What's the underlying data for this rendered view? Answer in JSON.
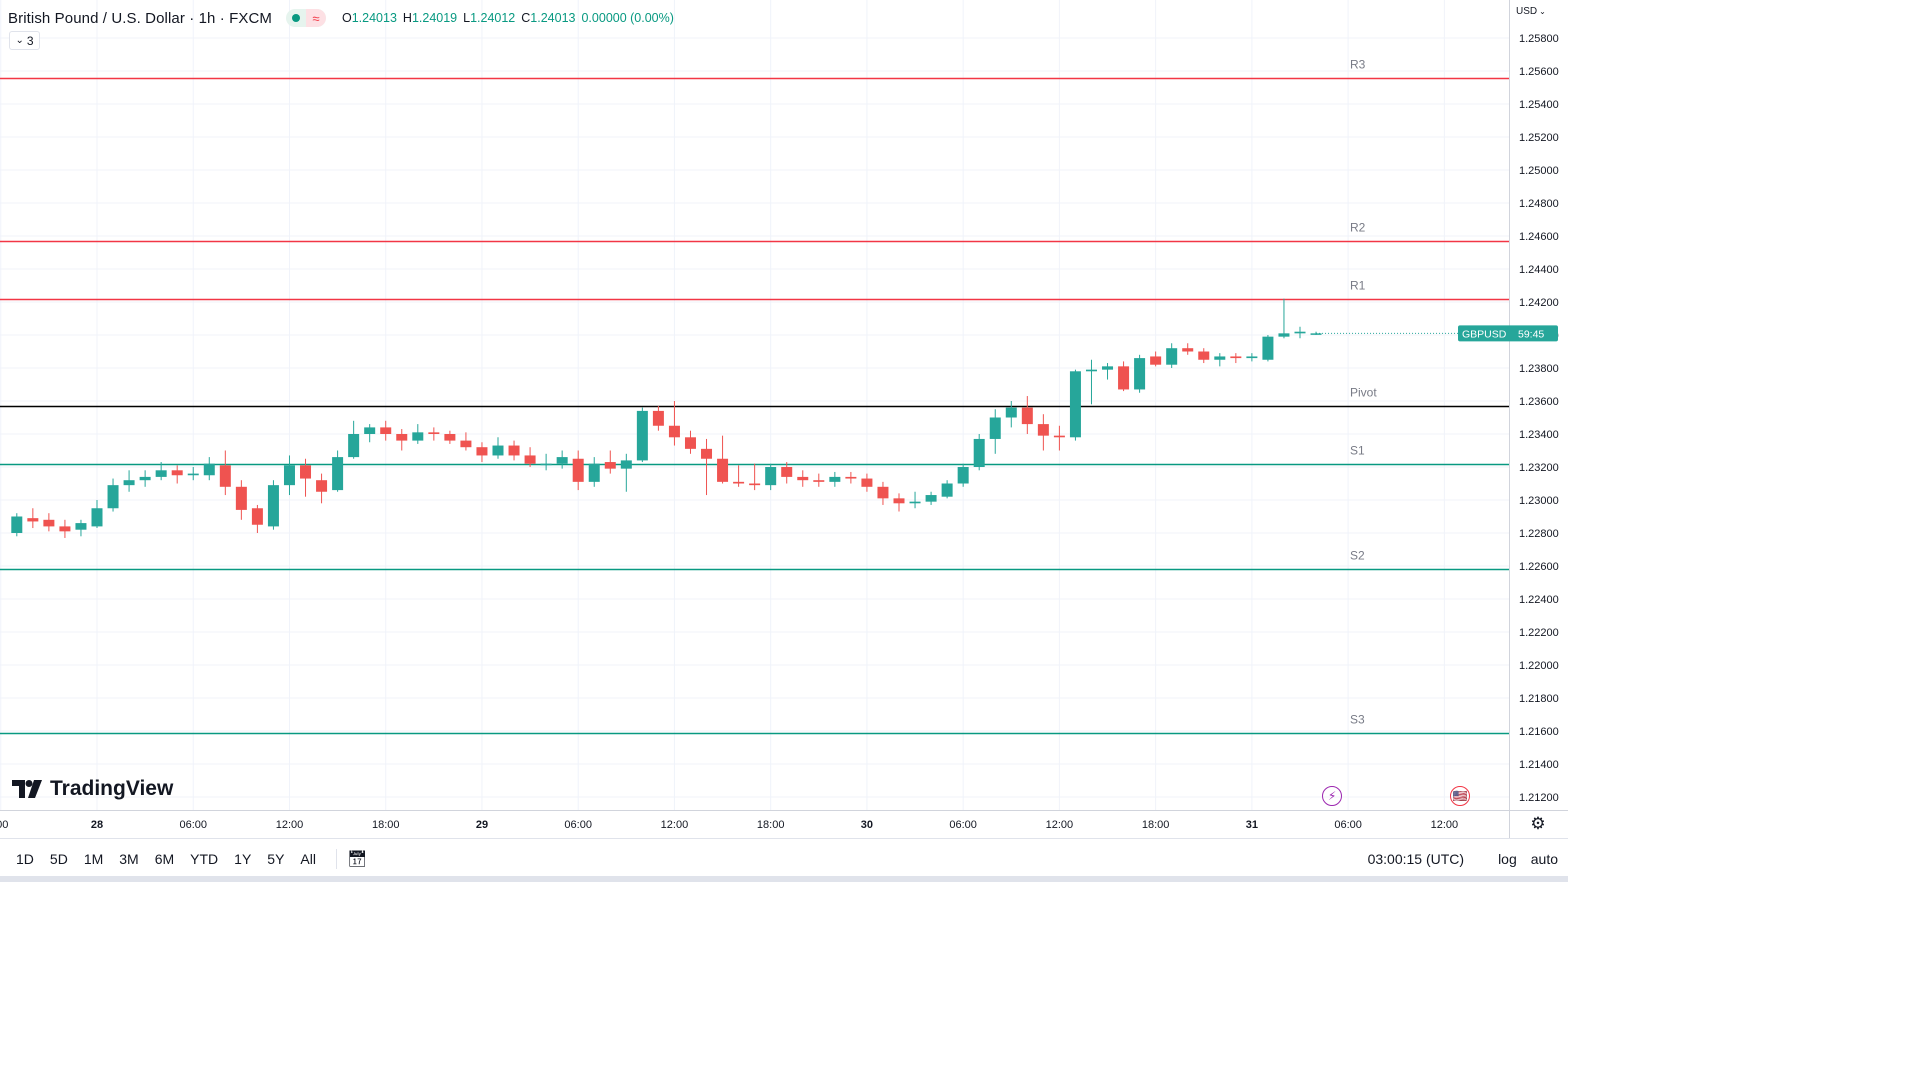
{
  "header": {
    "symbol_title": "British Pound / U.S. Dollar · 1h · FXCM",
    "ohlc": {
      "o_label": "O",
      "o": "1.24013",
      "h_label": "H",
      "h": "1.24019",
      "l_label": "L",
      "l": "1.24012",
      "c_label": "C",
      "c": "1.24013",
      "change": "0.00000 (0.00%)"
    },
    "indicator_count": "3",
    "status_color": "#089981"
  },
  "price_axis": {
    "currency": "USD",
    "ticks": [
      "1.25800",
      "1.25600",
      "1.25400",
      "1.25200",
      "1.25000",
      "1.24800",
      "1.24600",
      "1.24400",
      "1.24200",
      "1.24000",
      "1.23800",
      "1.23600",
      "1.23400",
      "1.23200",
      "1.23000",
      "1.22800",
      "1.22600",
      "1.22400",
      "1.22200",
      "1.22000",
      "1.21800",
      "1.21600",
      "1.21400",
      "1.21200"
    ],
    "price_label": {
      "symbol": "GBPUSD",
      "countdown": "59:45",
      "color": "#26a69a"
    }
  },
  "time_axis": {
    "ticks": [
      {
        "label": ":00",
        "slot": -6,
        "bold": false
      },
      {
        "label": "28",
        "slot": 0,
        "bold": true
      },
      {
        "label": "06:00",
        "slot": 6,
        "bold": false
      },
      {
        "label": "12:00",
        "slot": 12,
        "bold": false
      },
      {
        "label": "18:00",
        "slot": 18,
        "bold": false
      },
      {
        "label": "29",
        "slot": 24,
        "bold": true
      },
      {
        "label": "06:00",
        "slot": 30,
        "bold": false
      },
      {
        "label": "12:00",
        "slot": 36,
        "bold": false
      },
      {
        "label": "18:00",
        "slot": 42,
        "bold": false
      },
      {
        "label": "30",
        "slot": 48,
        "bold": true
      },
      {
        "label": "06:00",
        "slot": 54,
        "bold": false
      },
      {
        "label": "12:00",
        "slot": 60,
        "bold": false
      },
      {
        "label": "18:00",
        "slot": 66,
        "bold": false
      },
      {
        "label": "31",
        "slot": 72,
        "bold": true
      },
      {
        "label": "06:00",
        "slot": 78,
        "bold": false
      },
      {
        "label": "12:00",
        "slot": 84,
        "bold": false
      }
    ]
  },
  "chart_data": {
    "type": "candlestick",
    "title": "British Pound / U.S. Dollar · 1h · FXCM",
    "ylim": [
      1.2106,
      1.259
    ],
    "up_color": "#26a69a",
    "down_color": "#ef5350",
    "levels": [
      {
        "label": "R3",
        "value": 1.2556,
        "color": "#f23645"
      },
      {
        "label": "R2",
        "value": 1.2457,
        "color": "#f23645"
      },
      {
        "label": "R1",
        "value": 1.2422,
        "color": "#f23645"
      },
      {
        "label": "Pivot",
        "value": 1.2357,
        "color": "#000000"
      },
      {
        "label": "S1",
        "value": 1.2322,
        "color": "#089981"
      },
      {
        "label": "S2",
        "value": 1.2258,
        "color": "#089981"
      },
      {
        "label": "S3",
        "value": 1.2159,
        "color": "#089981"
      }
    ],
    "candles": [
      {
        "slot": -5,
        "o": 1.228,
        "h": 1.2292,
        "l": 1.2278,
        "c": 1.229
      },
      {
        "slot": -4,
        "o": 1.2289,
        "h": 1.2295,
        "l": 1.2283,
        "c": 1.2287
      },
      {
        "slot": -3,
        "o": 1.2288,
        "h": 1.2292,
        "l": 1.2281,
        "c": 1.2284
      },
      {
        "slot": -2,
        "o": 1.2284,
        "h": 1.2288,
        "l": 1.2277,
        "c": 1.2281
      },
      {
        "slot": -1,
        "o": 1.2282,
        "h": 1.2288,
        "l": 1.2278,
        "c": 1.2286
      },
      {
        "slot": 0,
        "o": 1.2284,
        "h": 1.23,
        "l": 1.2283,
        "c": 1.2295
      },
      {
        "slot": 1,
        "o": 1.2295,
        "h": 1.2313,
        "l": 1.2293,
        "c": 1.2309
      },
      {
        "slot": 2,
        "o": 1.2309,
        "h": 1.2318,
        "l": 1.2305,
        "c": 1.2312
      },
      {
        "slot": 3,
        "o": 1.2312,
        "h": 1.2318,
        "l": 1.2308,
        "c": 1.2314
      },
      {
        "slot": 4,
        "o": 1.2314,
        "h": 1.2323,
        "l": 1.2312,
        "c": 1.2318
      },
      {
        "slot": 5,
        "o": 1.2318,
        "h": 1.2321,
        "l": 1.231,
        "c": 1.2315
      },
      {
        "slot": 6,
        "o": 1.2315,
        "h": 1.232,
        "l": 1.2312,
        "c": 1.2316
      },
      {
        "slot": 7,
        "o": 1.2315,
        "h": 1.2326,
        "l": 1.2312,
        "c": 1.2322
      },
      {
        "slot": 8,
        "o": 1.2321,
        "h": 1.233,
        "l": 1.2303,
        "c": 1.2308
      },
      {
        "slot": 9,
        "o": 1.2308,
        "h": 1.2312,
        "l": 1.2288,
        "c": 1.2294
      },
      {
        "slot": 10,
        "o": 1.2295,
        "h": 1.2297,
        "l": 1.228,
        "c": 1.2285
      },
      {
        "slot": 11,
        "o": 1.2284,
        "h": 1.2312,
        "l": 1.2282,
        "c": 1.2309
      },
      {
        "slot": 12,
        "o": 1.2309,
        "h": 1.2327,
        "l": 1.2303,
        "c": 1.2321
      },
      {
        "slot": 13,
        "o": 1.2321,
        "h": 1.2325,
        "l": 1.2302,
        "c": 1.2313
      },
      {
        "slot": 14,
        "o": 1.2312,
        "h": 1.2316,
        "l": 1.2298,
        "c": 1.2305
      },
      {
        "slot": 15,
        "o": 1.2306,
        "h": 1.233,
        "l": 1.2305,
        "c": 1.2326
      },
      {
        "slot": 16,
        "o": 1.2326,
        "h": 1.2348,
        "l": 1.2325,
        "c": 1.234
      },
      {
        "slot": 17,
        "o": 1.234,
        "h": 1.2346,
        "l": 1.2335,
        "c": 1.2344
      },
      {
        "slot": 18,
        "o": 1.2344,
        "h": 1.2348,
        "l": 1.2336,
        "c": 1.234
      },
      {
        "slot": 19,
        "o": 1.234,
        "h": 1.2343,
        "l": 1.233,
        "c": 1.2336
      },
      {
        "slot": 20,
        "o": 1.2336,
        "h": 1.2346,
        "l": 1.2334,
        "c": 1.2341
      },
      {
        "slot": 21,
        "o": 1.2341,
        "h": 1.2344,
        "l": 1.2336,
        "c": 1.234
      },
      {
        "slot": 22,
        "o": 1.234,
        "h": 1.2342,
        "l": 1.2334,
        "c": 1.2336
      },
      {
        "slot": 23,
        "o": 1.2336,
        "h": 1.2341,
        "l": 1.233,
        "c": 1.2332
      },
      {
        "slot": 24,
        "o": 1.2332,
        "h": 1.2335,
        "l": 1.2323,
        "c": 1.2327
      },
      {
        "slot": 25,
        "o": 1.2327,
        "h": 1.2338,
        "l": 1.2325,
        "c": 1.2333
      },
      {
        "slot": 26,
        "o": 1.2333,
        "h": 1.2336,
        "l": 1.2324,
        "c": 1.2327
      },
      {
        "slot": 27,
        "o": 1.2327,
        "h": 1.2332,
        "l": 1.232,
        "c": 1.2322
      },
      {
        "slot": 28,
        "o": 1.2322,
        "h": 1.2328,
        "l": 1.2318,
        "c": 1.2322
      },
      {
        "slot": 29,
        "o": 1.2322,
        "h": 1.233,
        "l": 1.2319,
        "c": 1.2326
      },
      {
        "slot": 30,
        "o": 1.2325,
        "h": 1.233,
        "l": 1.2306,
        "c": 1.2311
      },
      {
        "slot": 31,
        "o": 1.2311,
        "h": 1.2326,
        "l": 1.2308,
        "c": 1.2322
      },
      {
        "slot": 32,
        "o": 1.2323,
        "h": 1.233,
        "l": 1.2316,
        "c": 1.2319
      },
      {
        "slot": 33,
        "o": 1.2319,
        "h": 1.2328,
        "l": 1.2305,
        "c": 1.2324
      },
      {
        "slot": 34,
        "o": 1.2324,
        "h": 1.2356,
        "l": 1.2323,
        "c": 1.2354
      },
      {
        "slot": 35,
        "o": 1.2354,
        "h": 1.2357,
        "l": 1.2342,
        "c": 1.2345
      },
      {
        "slot": 36,
        "o": 1.2345,
        "h": 1.236,
        "l": 1.2333,
        "c": 1.2338
      },
      {
        "slot": 37,
        "o": 1.2338,
        "h": 1.2342,
        "l": 1.2328,
        "c": 1.2331
      },
      {
        "slot": 38,
        "o": 1.2331,
        "h": 1.2337,
        "l": 1.2303,
        "c": 1.2325
      },
      {
        "slot": 39,
        "o": 1.2325,
        "h": 1.2339,
        "l": 1.231,
        "c": 1.2311
      },
      {
        "slot": 40,
        "o": 1.2311,
        "h": 1.2321,
        "l": 1.2308,
        "c": 1.231
      },
      {
        "slot": 41,
        "o": 1.231,
        "h": 1.2322,
        "l": 1.2306,
        "c": 1.2309
      },
      {
        "slot": 42,
        "o": 1.2309,
        "h": 1.2322,
        "l": 1.2306,
        "c": 1.232
      },
      {
        "slot": 43,
        "o": 1.232,
        "h": 1.2323,
        "l": 1.231,
        "c": 1.2314
      },
      {
        "slot": 44,
        "o": 1.2314,
        "h": 1.2318,
        "l": 1.2308,
        "c": 1.2312
      },
      {
        "slot": 45,
        "o": 1.2312,
        "h": 1.2316,
        "l": 1.2308,
        "c": 1.2311
      },
      {
        "slot": 46,
        "o": 1.2311,
        "h": 1.2317,
        "l": 1.2308,
        "c": 1.2314
      },
      {
        "slot": 47,
        "o": 1.2314,
        "h": 1.2317,
        "l": 1.231,
        "c": 1.2313
      },
      {
        "slot": 48,
        "o": 1.2313,
        "h": 1.2316,
        "l": 1.2305,
        "c": 1.2308
      },
      {
        "slot": 49,
        "o": 1.2308,
        "h": 1.2311,
        "l": 1.2297,
        "c": 1.2301
      },
      {
        "slot": 50,
        "o": 1.2301,
        "h": 1.2304,
        "l": 1.2293,
        "c": 1.2298
      },
      {
        "slot": 51,
        "o": 1.2298,
        "h": 1.2305,
        "l": 1.2295,
        "c": 1.2299
      },
      {
        "slot": 52,
        "o": 1.2299,
        "h": 1.2305,
        "l": 1.2297,
        "c": 1.2303
      },
      {
        "slot": 53,
        "o": 1.2302,
        "h": 1.2312,
        "l": 1.2301,
        "c": 1.231
      },
      {
        "slot": 54,
        "o": 1.231,
        "h": 1.2322,
        "l": 1.2308,
        "c": 1.232
      },
      {
        "slot": 55,
        "o": 1.232,
        "h": 1.234,
        "l": 1.2318,
        "c": 1.2337
      },
      {
        "slot": 56,
        "o": 1.2337,
        "h": 1.2355,
        "l": 1.2328,
        "c": 1.235
      },
      {
        "slot": 57,
        "o": 1.235,
        "h": 1.236,
        "l": 1.2344,
        "c": 1.2356
      },
      {
        "slot": 58,
        "o": 1.2356,
        "h": 1.2363,
        "l": 1.234,
        "c": 1.2346
      },
      {
        "slot": 59,
        "o": 1.2346,
        "h": 1.2352,
        "l": 1.233,
        "c": 1.2339
      },
      {
        "slot": 60,
        "o": 1.2339,
        "h": 1.2345,
        "l": 1.233,
        "c": 1.2338
      },
      {
        "slot": 61,
        "o": 1.2338,
        "h": 1.2379,
        "l": 1.2336,
        "c": 1.2378
      },
      {
        "slot": 62,
        "o": 1.2378,
        "h": 1.2385,
        "l": 1.2358,
        "c": 1.2379
      },
      {
        "slot": 63,
        "o": 1.2379,
        "h": 1.2383,
        "l": 1.2373,
        "c": 1.2381
      },
      {
        "slot": 64,
        "o": 1.2381,
        "h": 1.2384,
        "l": 1.2366,
        "c": 1.2367
      },
      {
        "slot": 65,
        "o": 1.2367,
        "h": 1.2388,
        "l": 1.2365,
        "c": 1.2386
      },
      {
        "slot": 66,
        "o": 1.2387,
        "h": 1.239,
        "l": 1.2381,
        "c": 1.2382
      },
      {
        "slot": 67,
        "o": 1.2382,
        "h": 1.2395,
        "l": 1.238,
        "c": 1.2392
      },
      {
        "slot": 68,
        "o": 1.2392,
        "h": 1.2395,
        "l": 1.2388,
        "c": 1.239
      },
      {
        "slot": 69,
        "o": 1.239,
        "h": 1.2392,
        "l": 1.2383,
        "c": 1.2385
      },
      {
        "slot": 70,
        "o": 1.2385,
        "h": 1.2389,
        "l": 1.2381,
        "c": 1.2387
      },
      {
        "slot": 71,
        "o": 1.2387,
        "h": 1.2389,
        "l": 1.2383,
        "c": 1.2386
      },
      {
        "slot": 72,
        "o": 1.2386,
        "h": 1.2389,
        "l": 1.2384,
        "c": 1.2387
      },
      {
        "slot": 73,
        "o": 1.2385,
        "h": 1.24,
        "l": 1.2384,
        "c": 1.2399
      },
      {
        "slot": 74,
        "o": 1.2399,
        "h": 1.2422,
        "l": 1.2398,
        "c": 1.2401
      },
      {
        "slot": 75,
        "o": 1.2401,
        "h": 1.2405,
        "l": 1.2398,
        "c": 1.2402
      },
      {
        "slot": 76,
        "o": 1.2401,
        "h": 1.2402,
        "l": 1.24,
        "c": 1.2401
      }
    ]
  },
  "range_buttons": [
    "1D",
    "5D",
    "1M",
    "3M",
    "6M",
    "YTD",
    "1Y",
    "5Y",
    "All"
  ],
  "footer": {
    "clock": "03:00:15 (UTC)",
    "log_label": "log",
    "auto_label": "auto"
  },
  "branding": {
    "logo_text": "TradingView",
    "logo_mark": "17"
  },
  "events": [
    {
      "icon": "lightning-icon",
      "slot": 77,
      "color": "#9c27b0",
      "glyph": "⚡"
    },
    {
      "icon": "us-flag-icon",
      "slot": 85,
      "color": "#f23645",
      "glyph": "🇺🇸"
    }
  ]
}
